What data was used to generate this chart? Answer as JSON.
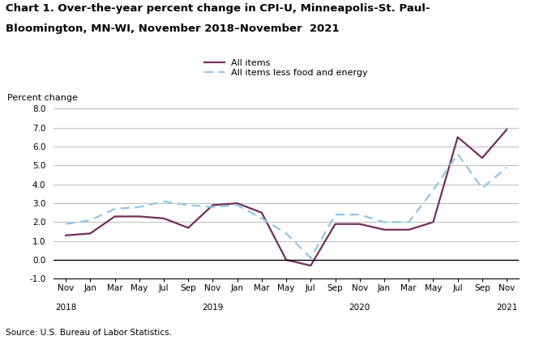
{
  "title_line1": "Chart 1. Over-the-year percent change in CPI-U, Minneapolis-St. Paul-",
  "title_line2": "Bloomington, MN-WI, November 2018–November  2021",
  "ylabel": "Percent change",
  "source": "Source: U.S. Bureau of Labor Statistics.",
  "ylim": [
    -1.0,
    8.0
  ],
  "yticks": [
    -1.0,
    0.0,
    1.0,
    2.0,
    3.0,
    4.0,
    5.0,
    6.0,
    7.0,
    8.0
  ],
  "x_labels": [
    "Nov",
    "Jan",
    "Mar",
    "May",
    "Jul",
    "Sep",
    "Nov",
    "Jan",
    "Mar",
    "May",
    "Jul",
    "Sep",
    "Nov",
    "Jan",
    "Mar",
    "May",
    "Jul",
    "Sep",
    "Nov"
  ],
  "year_labels": {
    "0": "2018",
    "6": "2019",
    "12": "2020",
    "18": "2021"
  },
  "all_items": [
    1.3,
    1.4,
    2.3,
    2.3,
    2.2,
    1.7,
    2.9,
    3.0,
    2.5,
    0.0,
    -0.3,
    1.9,
    1.9,
    1.6,
    1.6,
    2.0,
    6.5,
    5.4,
    6.9
  ],
  "core_items": [
    1.9,
    2.1,
    2.7,
    2.8,
    3.1,
    2.9,
    2.8,
    2.9,
    2.2,
    1.4,
    0.1,
    2.4,
    2.4,
    2.0,
    2.0,
    3.7,
    5.6,
    3.8,
    4.9
  ],
  "all_items_color": "#722F5A",
  "core_items_color": "#92C5E8",
  "background_color": "#ffffff",
  "legend_labels": [
    "All items",
    "All items less food and energy"
  ],
  "all_items_label": "All items",
  "core_items_label": "All items less food and energy"
}
